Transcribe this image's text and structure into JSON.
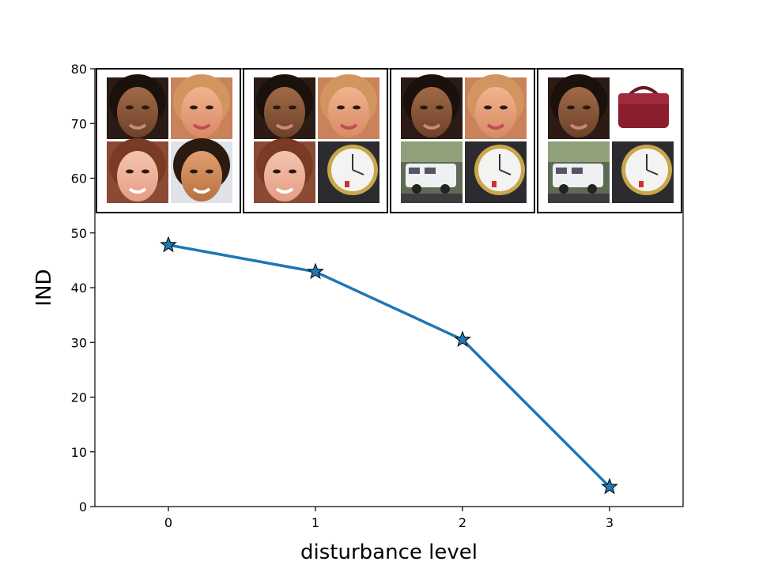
{
  "chart_data": {
    "type": "line",
    "title": "",
    "xlabel": "disturbance level",
    "ylabel": "IND",
    "x": [
      0,
      1,
      2,
      3
    ],
    "xlim": [
      -0.5,
      3.5
    ],
    "ylim": [
      0,
      80
    ],
    "xticks": [
      "0",
      "1",
      "2",
      "3"
    ],
    "yticks": [
      "0",
      "10",
      "20",
      "30",
      "40",
      "50",
      "60",
      "70",
      "80"
    ],
    "series": [
      {
        "values": [
          47.8,
          42.9,
          30.5,
          3.6
        ],
        "color": "#1f77b4",
        "marker": "star"
      }
    ],
    "grid": false,
    "legend": "none",
    "insets": [
      {
        "level": 0,
        "images": [
          "face-dark-hair",
          "face-blonde",
          "face-smiling-woman",
          "face-man"
        ]
      },
      {
        "level": 1,
        "images": [
          "face-dark-hair",
          "face-blonde",
          "face-smiling-woman",
          "clock"
        ]
      },
      {
        "level": 2,
        "images": [
          "face-dark-hair",
          "face-blonde",
          "camper-van",
          "clock"
        ]
      },
      {
        "level": 3,
        "images": [
          "face-dark-hair",
          "red-handbag",
          "camper-van",
          "clock"
        ]
      }
    ]
  }
}
